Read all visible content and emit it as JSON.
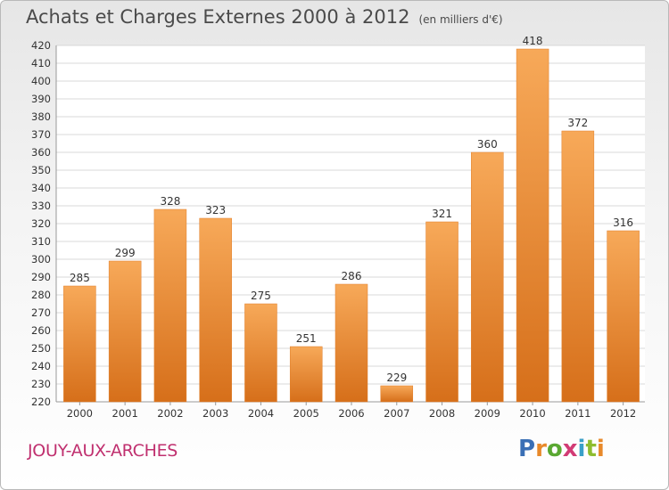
{
  "header": {
    "title": "Achats et Charges Externes 2000 à 2012",
    "unit": "(en milliers d'€)"
  },
  "footer": {
    "location": "JOUY-AUX-ARCHES",
    "brand": "Proxiti",
    "brand_letters": [
      {
        "ch": "P",
        "color": "#3a6fb5"
      },
      {
        "ch": "r",
        "color": "#e8892a"
      },
      {
        "ch": "o",
        "color": "#5aa832"
      },
      {
        "ch": "x",
        "color": "#d23b75"
      },
      {
        "ch": "i",
        "color": "#3aa0c8"
      },
      {
        "ch": "t",
        "color": "#8ebd2f"
      },
      {
        "ch": "i",
        "color": "#e8892a"
      }
    ]
  },
  "colors": {
    "bar_light": "#f7a959",
    "bar_dark": "#d66f1a",
    "grid": "#d8d8d8",
    "axis_text": "#333333"
  },
  "chart_data": {
    "type": "bar",
    "title": "Achats et Charges Externes 2000 à 2012",
    "ylabel": "",
    "xlabel": "",
    "categories": [
      "2000",
      "2001",
      "2002",
      "2003",
      "2004",
      "2005",
      "2006",
      "2007",
      "2008",
      "2009",
      "2010",
      "2011",
      "2012"
    ],
    "values": [
      285,
      299,
      328,
      323,
      275,
      251,
      286,
      229,
      321,
      360,
      418,
      372,
      316
    ],
    "ylim": [
      220,
      420
    ],
    "ytick_step": 10,
    "grid": true
  }
}
